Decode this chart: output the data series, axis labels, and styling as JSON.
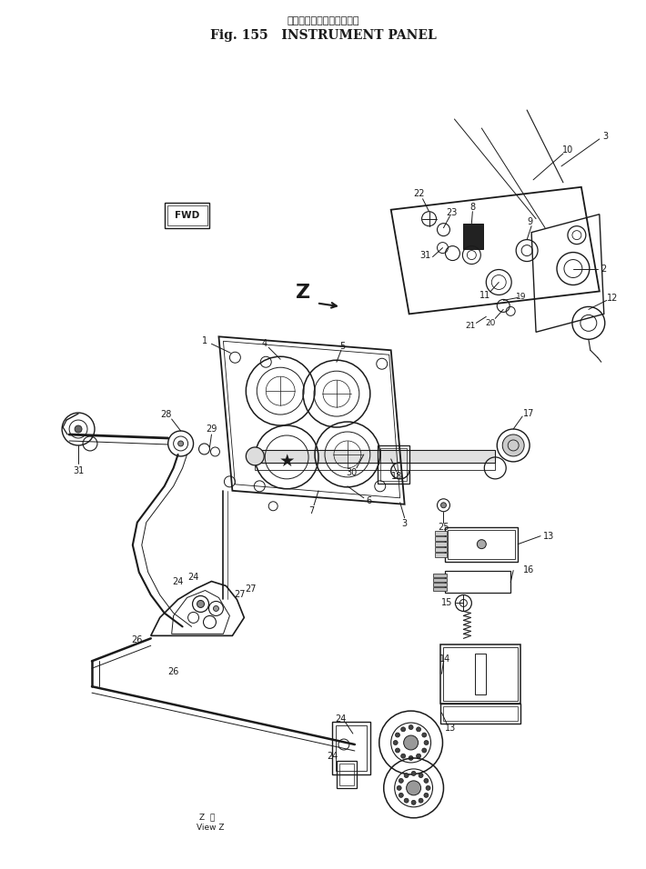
{
  "title_japanese": "インスツルメント　パネル",
  "title_english": "Fig. 155   INSTRUMENT PANEL",
  "bg_color": "#ffffff",
  "line_color": "#1a1a1a",
  "fig_width": 7.1,
  "fig_height": 9.56,
  "dpi": 100,
  "view_z_text": "Z  矢\nView Z"
}
